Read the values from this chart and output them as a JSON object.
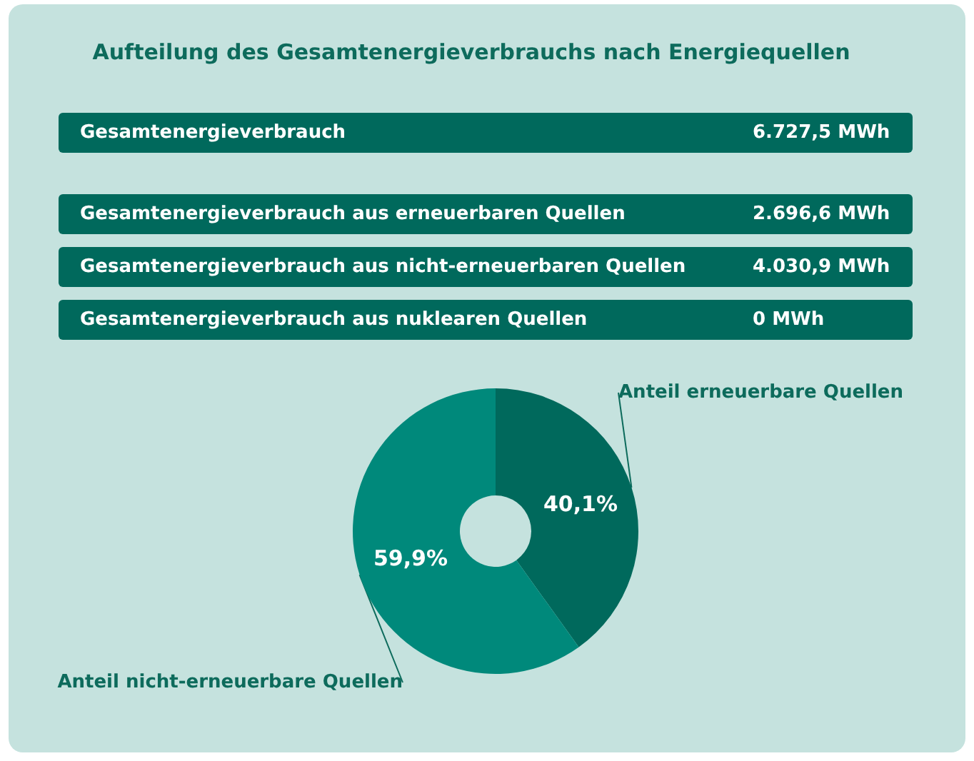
{
  "chart_data": {
    "type": "donut",
    "title": "Aufteilung des Gesamtenergieverbrauchs nach Energiequellen",
    "annotations": [
      "Gesamtenergieverbrauch",
      "6.727,5 MWh",
      "Gesamtenergieverbrauch aus erneuerbaren Quellen",
      "2.696,6 MWh",
      "Gesamtenergieverbrauch aus nicht-erneuerbaren Quellen",
      "4.030,9 MWh",
      "Gesamtenergieverbrauch aus nuklearen Quellen",
      "0 MWh"
    ],
    "categories": [
      "Anteil erneuerbare Quellen",
      "Anteil nicht-erneuerbare Quellen"
    ],
    "values": [
      40.1,
      59.9
    ],
    "value_labels": [
      "40,1%",
      "59,9%"
    ],
    "colors": [
      "#00695c",
      "#00897b"
    ],
    "legend": false
  }
}
